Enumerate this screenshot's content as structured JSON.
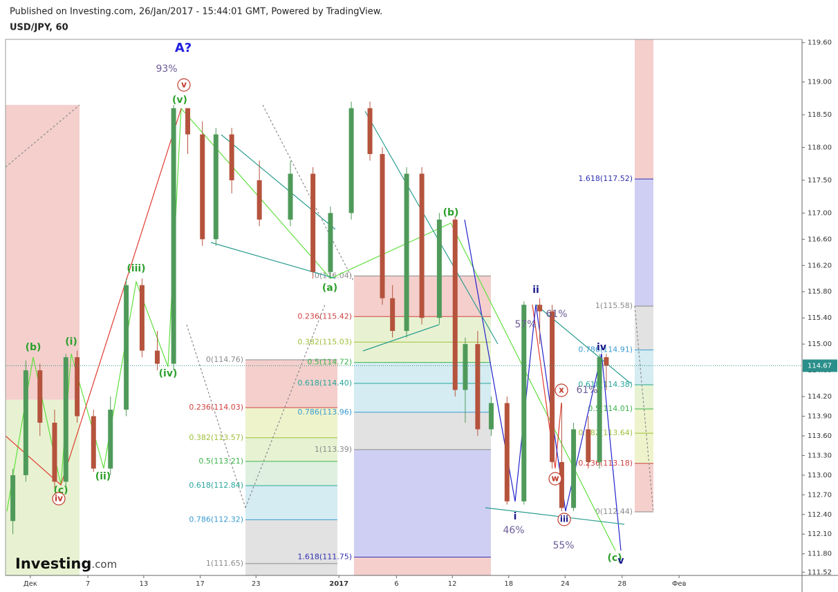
{
  "header": {
    "published": "Published on Investing.com, 26/Jan/2017 - 15:44:01 GMT, Powered by TradingView.",
    "symbol": "USD/JPY, 60"
  },
  "logo": {
    "main": "Investing",
    "suffix": ".com"
  },
  "chart_data": {
    "type": "candlestick",
    "xlim": [
      -0.44,
      13.68
    ],
    "ylim": [
      111.47,
      119.65
    ],
    "grid": false,
    "xticks": [
      {
        "value": 0,
        "label": "Дек"
      },
      {
        "value": 1.02,
        "label": "7"
      },
      {
        "value": 2.01,
        "label": "13"
      },
      {
        "value": 3.01,
        "label": "17"
      },
      {
        "value": 4.0,
        "label": "23"
      },
      {
        "value": 5.47,
        "label": "2017"
      },
      {
        "value": 6.49,
        "label": "6"
      },
      {
        "value": 7.48,
        "label": "12"
      },
      {
        "value": 8.48,
        "label": "18"
      },
      {
        "value": 9.48,
        "label": "24"
      },
      {
        "value": 10.49,
        "label": "28"
      },
      {
        "value": 11.5,
        "label": "Фев"
      }
    ],
    "yticks": [
      {
        "value": 119.6,
        "label": "119.60"
      },
      {
        "value": 119,
        "label": "119.00"
      },
      {
        "value": 118.5,
        "label": "118.50"
      },
      {
        "value": 118,
        "label": "118.00"
      },
      {
        "value": 117.5,
        "label": "117.50"
      },
      {
        "value": 117,
        "label": "117.00"
      },
      {
        "value": 116.6,
        "label": "116.60"
      },
      {
        "value": 116.2,
        "label": "116.20"
      },
      {
        "value": 115.8,
        "label": "115.80"
      },
      {
        "value": 115.4,
        "label": "115.40"
      },
      {
        "value": 115,
        "label": "115.00"
      },
      {
        "value": 114.6,
        "label": "114.60"
      },
      {
        "value": 114.2,
        "label": "114.20"
      },
      {
        "value": 113.9,
        "label": "113.90"
      },
      {
        "value": 113.6,
        "label": "113.60"
      },
      {
        "value": 113.3,
        "label": "113.30"
      },
      {
        "value": 113,
        "label": "113.00"
      },
      {
        "value": 112.7,
        "label": "112.70"
      },
      {
        "value": 112.4,
        "label": "112.40"
      },
      {
        "value": 112.1,
        "label": "112.10"
      },
      {
        "value": 111.8,
        "label": "111.80"
      },
      111.52
    ],
    "up_color": "#4f9a5a",
    "down_color": "#b5533d",
    "x": [
      -0.31,
      -0.08,
      0.17,
      0.43,
      0.63,
      0.83,
      1.12,
      1.42,
      1.7,
      1.98,
      2.25,
      2.54,
      2.79,
      3.05,
      3.29,
      3.57,
      4.06,
      4.61,
      5.01,
      5.32,
      5.69,
      6.02,
      6.24,
      6.42,
      6.67,
      6.94,
      7.25,
      7.53,
      7.71,
      7.93,
      8.17,
      8.45,
      8.75,
      9.03,
      9.25,
      9.42,
      9.63,
      9.89,
      10.09,
      10.21
    ],
    "open": [
      112.3,
      113.0,
      114.6,
      113.8,
      112.9,
      114.8,
      113.9,
      113.1,
      114.0,
      115.9,
      114.9,
      114.7,
      118.6,
      118.2,
      116.6,
      118.2,
      117.5,
      116.9,
      117.6,
      116.1,
      117.0,
      118.6,
      117.9,
      115.7,
      115.2,
      117.6,
      115.4,
      116.9,
      114.3,
      115.0,
      113.7,
      114.1,
      112.6,
      115.6,
      115.5,
      113.2,
      112.5,
      113.7,
      113.2,
      114.8
    ],
    "high": [
      113.1,
      114.75,
      114.7,
      114.0,
      114.85,
      114.9,
      114.0,
      114.2,
      116.0,
      116.0,
      115.2,
      118.65,
      118.6,
      118.4,
      118.3,
      118.3,
      117.8,
      117.8,
      117.7,
      117.1,
      118.7,
      118.7,
      118.0,
      115.9,
      117.7,
      117.7,
      117.0,
      116.95,
      115.1,
      115.2,
      114.2,
      114.2,
      115.65,
      115.7,
      115.6,
      114.1,
      113.8,
      113.9,
      114.85,
      114.85
    ],
    "low": [
      112.1,
      112.9,
      113.6,
      112.8,
      112.8,
      113.8,
      113.05,
      113.0,
      113.9,
      114.8,
      114.6,
      114.6,
      117.9,
      116.5,
      116.5,
      117.3,
      116.8,
      116.8,
      116.0,
      116.0,
      116.9,
      117.8,
      115.6,
      115.1,
      115.1,
      115.3,
      115.3,
      114.2,
      113.8,
      113.6,
      113.6,
      112.55,
      112.55,
      115.0,
      113.1,
      112.45,
      112.45,
      113.1,
      113.1,
      114.3
    ],
    "close": [
      113.0,
      114.6,
      113.8,
      112.9,
      114.8,
      113.9,
      113.1,
      114.0,
      115.9,
      114.9,
      114.7,
      118.6,
      118.2,
      116.6,
      118.2,
      117.5,
      116.9,
      117.6,
      116.1,
      117.0,
      118.6,
      117.9,
      115.7,
      115.2,
      117.6,
      115.4,
      116.9,
      114.3,
      115.0,
      113.7,
      114.1,
      112.6,
      115.6,
      115.5,
      113.2,
      112.5,
      113.7,
      113.2,
      114.8,
      114.67
    ],
    "last_price": 114.67,
    "last_price_color": "#2a8f8a",
    "range_box": {
      "values": [
        118.65,
        114.15
      ],
      "colors": [
        "#f4cfcc",
        "#e8f2d2"
      ]
    },
    "fib_sets": [
      {
        "levels": [
          {
            "label": "0(114.76)",
            "value": 114.76,
            "color": "#8a8a8a",
            "fill": "#f4cfcc"
          },
          {
            "label": "0.236(114.03)",
            "value": 114.03,
            "color": "#d04040",
            "fill": "#eef3cc"
          },
          {
            "label": "0.382(113.57)",
            "value": 113.57,
            "color": "#9fbf3a",
            "fill": "#e6f2d2"
          },
          {
            "label": "0.5(113.21)",
            "value": 113.21,
            "color": "#3cb44b",
            "fill": "#dff0e0"
          },
          {
            "label": "0.618(112.84)",
            "value": 112.84,
            "color": "#26a69a",
            "fill": "#d4ecf2"
          },
          {
            "label": "0.786(112.32)",
            "value": 112.32,
            "color": "#3a9ad0",
            "fill": "#e2e2e2"
          },
          {
            "label": "1(111.65)",
            "value": 111.65,
            "color": "#8a8a8a",
            "fill": "#e2e2e2"
          }
        ]
      },
      {
        "levels": [
          {
            "label": "0(116.04)",
            "value": 116.04,
            "color": "#8a8a8a",
            "fill": "#f4cfcc"
          },
          {
            "label": "0.236(115.42)",
            "value": 115.42,
            "color": "#d04040",
            "fill": "#e8f2d2"
          },
          {
            "label": "0.382(115.03)",
            "value": 115.03,
            "color": "#9fbf3a",
            "fill": "#e8f2d2"
          },
          {
            "label": "0.5(114.72)",
            "value": 114.72,
            "color": "#3cb44b",
            "fill": "#d4ecf2"
          },
          {
            "label": "0.618(114.40)",
            "value": 114.4,
            "color": "#26a69a",
            "fill": "#d4ecf2"
          },
          {
            "label": "0.786(113.96)",
            "value": 113.96,
            "color": "#3a9ad0",
            "fill": "#e2e2e2"
          },
          {
            "label": "1(113.39)",
            "value": 113.39,
            "color": "#8a8a8a",
            "fill": "#cfcff3"
          },
          {
            "label": "1.618(111.75)",
            "value": 111.75,
            "color": "#3030b0",
            "fill": "#f4cfcc"
          }
        ]
      },
      {
        "fill_above": "#f4cfcc",
        "levels": [
          {
            "label": "1.618(117.52)",
            "value": 117.52,
            "color": "#3030b0",
            "fill": "#cfcff3"
          },
          {
            "label": "1(115.58)",
            "value": 115.58,
            "color": "#8a8a8a",
            "fill": "#e2e2e2"
          },
          {
            "label": "0.786(114.91)",
            "value": 114.91,
            "color": "#3a9ad0",
            "fill": "#d4ecf2"
          },
          {
            "label": "0.618(114.38)",
            "value": 114.38,
            "color": "#26a69a",
            "fill": "#e6f2d2"
          },
          {
            "label": "0.5(114.01)",
            "value": 114.01,
            "color": "#3cb44b",
            "fill": "#eef3cc"
          },
          {
            "label": "0.382(113.64)",
            "value": 113.64,
            "color": "#9fbf3a",
            "fill": "#eef3cc"
          },
          {
            "label": "0.236(113.18)",
            "value": 113.18,
            "color": "#d04040",
            "fill": "#f4cfcc"
          },
          {
            "label": "0(112.44)",
            "value": 112.44,
            "color": "#8a8a8a"
          }
        ]
      }
    ],
    "annotations": [
      {
        "text": "A?",
        "color": "#2020e0",
        "size": 18
      },
      {
        "text": "93%",
        "color": "#6b5b95"
      },
      {
        "text": "v",
        "color": "#c0392b",
        "circled": true
      },
      {
        "text": "(v)",
        "color": "#2ca02c"
      },
      {
        "text": "(b)",
        "color": "#2ca02c"
      },
      {
        "text": "(i)",
        "color": "#2ca02c"
      },
      {
        "text": "(iii)",
        "color": "#2ca02c"
      },
      {
        "text": "(iv)",
        "color": "#2ca02c"
      },
      {
        "text": "(ii)",
        "color": "#2ca02c"
      },
      {
        "text": "(c)",
        "color": "#2ca02c"
      },
      {
        "text": "iv",
        "color": "#c0392b",
        "circled": true
      },
      {
        "text": "(a)",
        "color": "#2ca02c"
      },
      {
        "text": "(b)",
        "color": "#2ca02c"
      },
      {
        "text": "ii",
        "color": "#1a1a8c"
      },
      {
        "text": "61%",
        "color": "#6b5b95"
      },
      {
        "text": "57%",
        "color": "#6b5b95"
      },
      {
        "text": "iv",
        "color": "#1a1a8c"
      },
      {
        "text": "61%",
        "color": "#6b5b95"
      },
      {
        "text": "x",
        "color": "#c0392b",
        "circled": true
      },
      {
        "text": "w",
        "color": "#c0392b",
        "circled": true
      },
      {
        "text": "i",
        "color": "#1a1a8c"
      },
      {
        "text": "46%",
        "color": "#6b5b95"
      },
      {
        "text": "iii",
        "color": "#1a1a8c",
        "circled": true
      },
      {
        "text": "55%",
        "color": "#6b5b95"
      },
      {
        "text": "(c)",
        "color": "#2ca02c"
      },
      {
        "text": "v",
        "color": "#1a1a8c"
      }
    ]
  }
}
